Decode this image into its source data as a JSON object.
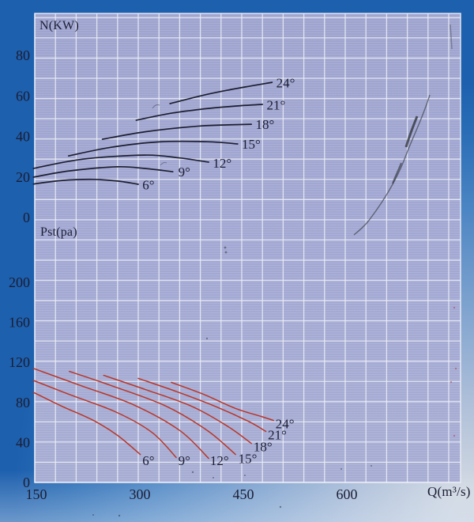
{
  "figure": {
    "top_chart_label": "N(KW)",
    "bottom_chart_label": "Pst(pa)",
    "x_axis_label": "Q(m³/s)"
  },
  "colors": {
    "power_curves": "#1d1e30",
    "pressure_curves": "#b93527",
    "grid_line": "#edeff7",
    "plot_background": "#a6acd7",
    "text": "#1c1d33",
    "page_gradient_dark": "#1d60ae",
    "page_gradient_light": "#d2d9e2"
  },
  "chart_data": [
    {
      "type": "line",
      "id": "power",
      "ylabel": "N(KW)",
      "xlabel": "Q(m³/s)",
      "x_ticks": [
        150,
        300,
        450,
        600
      ],
      "y_ticks": [
        0,
        20,
        40,
        60,
        80
      ],
      "xlim": [
        150,
        767
      ],
      "ylim": [
        0,
        101
      ],
      "grid": true,
      "legend_style": "labels at right end of each curve",
      "series": [
        {
          "name": "6°",
          "points": [
            [
              148,
              16.5
            ],
            [
              190,
              18.3
            ],
            [
              235,
              18.8
            ],
            [
              270,
              18.0
            ],
            [
              300,
              16.4
            ]
          ],
          "label_at": [
            306,
            16.2
          ]
        },
        {
          "name": "9°",
          "points": [
            [
              148,
              19.9
            ],
            [
              200,
              23.0
            ],
            [
              269,
              25.0
            ],
            [
              310,
              24.2
            ],
            [
              350,
              22.6
            ]
          ],
          "label_at": [
            358,
            22.6
          ]
        },
        {
          "name": "12°",
          "points": [
            [
              148,
              24.2
            ],
            [
              220,
              28.8
            ],
            [
              309,
              30.8
            ],
            [
              360,
              29.4
            ],
            [
              402,
              27.3
            ]
          ],
          "label_at": [
            408,
            27.0
          ]
        },
        {
          "name": "15°",
          "points": [
            [
              199,
              30.4
            ],
            [
              260,
              34.6
            ],
            [
              330,
              37.3
            ],
            [
              400,
              37.4
            ],
            [
              444,
              36.3
            ]
          ],
          "label_at": [
            450,
            36.2
          ]
        },
        {
          "name": "18°",
          "points": [
            [
              248,
              38.6
            ],
            [
              310,
              42.3
            ],
            [
              384,
              45.0
            ],
            [
              430,
              45.7
            ],
            [
              464,
              46.0
            ]
          ],
          "label_at": [
            470,
            46.0
          ]
        },
        {
          "name": "21°",
          "points": [
            [
              297,
              48.0
            ],
            [
              350,
              51.6
            ],
            [
              407,
              54.0
            ],
            [
              450,
              55.2
            ],
            [
              480,
              55.8
            ]
          ],
          "label_at": [
            486,
            55.6
          ]
        },
        {
          "name": "24°",
          "points": [
            [
              346,
              56.2
            ],
            [
              390,
              60.0
            ],
            [
              429,
              62.8
            ],
            [
              465,
              65.0
            ],
            [
              494,
              66.7
            ]
          ],
          "label_at": [
            500,
            66.6
          ]
        }
      ]
    },
    {
      "type": "line",
      "id": "pressure",
      "ylabel": "Pst(pa)",
      "xlabel": "Q(m³/s)",
      "x_ticks": [
        150,
        300,
        450,
        600
      ],
      "y_ticks": [
        0,
        40,
        80,
        120,
        160,
        200
      ],
      "xlim": [
        150,
        767
      ],
      "ylim": [
        0,
        234
      ],
      "grid": true,
      "legend_style": "labels at right end of each curve",
      "series": [
        {
          "name": "6°",
          "points": [
            [
              148,
              90
            ],
            [
              190,
              76
            ],
            [
              235,
              62
            ],
            [
              270,
              47
            ],
            [
              303,
              28
            ]
          ],
          "label_at": [
            306,
            22
          ]
        },
        {
          "name": "9°",
          "points": [
            [
              148,
              102
            ],
            [
              200,
              88
            ],
            [
              269,
              70
            ],
            [
              320,
              50
            ],
            [
              355,
              25
            ]
          ],
          "label_at": [
            358,
            22
          ]
        },
        {
          "name": "12°",
          "points": [
            [
              148,
              114
            ],
            [
              220,
              96
            ],
            [
              292,
              78
            ],
            [
              360,
              52
            ],
            [
              402,
              24
            ]
          ],
          "label_at": [
            404,
            22
          ]
        },
        {
          "name": "15°",
          "points": [
            [
              200,
              111
            ],
            [
              260,
              97
            ],
            [
              338,
              77
            ],
            [
              400,
              52
            ],
            [
              441,
              28
            ]
          ],
          "label_at": [
            445,
            24
          ]
        },
        {
          "name": "18°",
          "points": [
            [
              250,
              107
            ],
            [
              310,
              93
            ],
            [
              378,
              76
            ],
            [
              430,
              56
            ],
            [
              464,
              39
            ]
          ],
          "label_at": [
            467,
            36
          ]
        },
        {
          "name": "21°",
          "points": [
            [
              300,
              104
            ],
            [
              355,
              91
            ],
            [
              412,
              76
            ],
            [
              460,
              61
            ],
            [
              485,
              51
            ]
          ],
          "label_at": [
            488,
            48
          ]
        },
        {
          "name": "24°",
          "points": [
            [
              348,
              100
            ],
            [
              395,
              88
            ],
            [
              441,
              74
            ],
            [
              478,
              66
            ],
            [
              496,
              62
            ]
          ],
          "label_at": [
            499,
            59
          ]
        }
      ]
    }
  ]
}
